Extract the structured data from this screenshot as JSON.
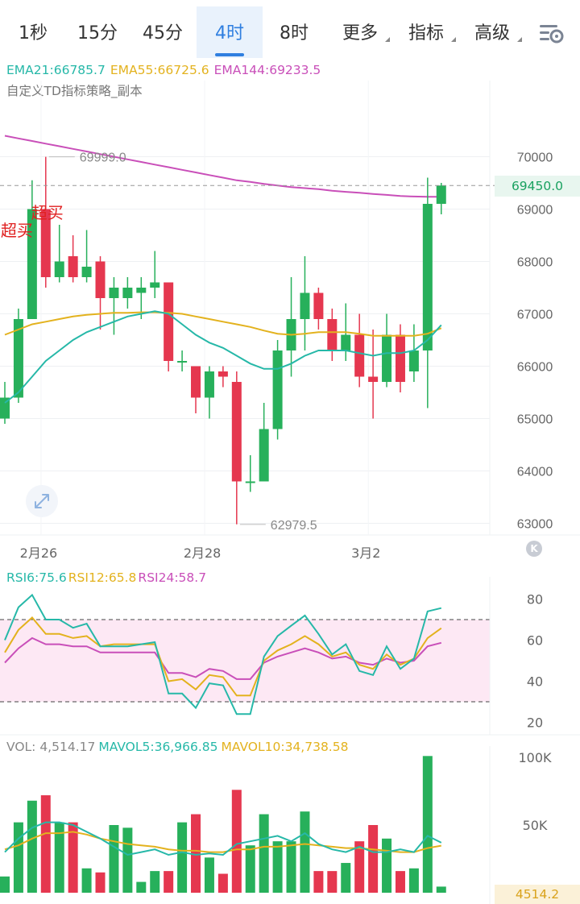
{
  "tabs": [
    {
      "label": "1秒",
      "dropdown": false,
      "active": false
    },
    {
      "label": "15分",
      "dropdown": false,
      "active": false
    },
    {
      "label": "45分",
      "dropdown": false,
      "active": false
    },
    {
      "label": "4时",
      "dropdown": false,
      "active": true
    },
    {
      "label": "8时",
      "dropdown": false,
      "active": false
    },
    {
      "label": "更多",
      "dropdown": true,
      "active": false
    },
    {
      "label": "指标",
      "dropdown": true,
      "active": false
    },
    {
      "label": "高级",
      "dropdown": true,
      "active": false
    }
  ],
  "icons": {
    "settings": "chart-settings-icon",
    "zoom": "expand-arrows-icon",
    "k": "k-line-icon"
  },
  "k_label": "K",
  "colors": {
    "up": "#27b05b",
    "down": "#e5374f",
    "ema21": "#26b8a8",
    "ema55": "#e3b21e",
    "ema144": "#c94fb9",
    "rsi6": "#26b8a8",
    "rsi12": "#e3b21e",
    "rsi24": "#c94fb9",
    "accent": "#2f7fe0"
  },
  "main_legend": {
    "ema21": "EMA21:66785.7",
    "ema55": "EMA55:66725.6",
    "ema144": "EMA144:69233.5",
    "strategy": "自定义TD指标策略_副本"
  },
  "rsi_legend": {
    "rsi6": "RSI6:75.6",
    "rsi12": "RSI12:65.8",
    "rsi24": "RSI24:58.7"
  },
  "vol_legend": {
    "vol": "VOL: 4,514.17",
    "mavol5": "MAVOL5:36,966.85",
    "mavol10": "MAVOL10:34,738.58"
  },
  "last_price": "69450.0",
  "last_volume": "4514.2",
  "chart_data": {
    "type": "candlestick",
    "price_ticks": [
      70000,
      69000,
      68000,
      67000,
      66000,
      65000,
      64000,
      63000
    ],
    "date_labels": [
      {
        "index": 1,
        "label": "2月26"
      },
      {
        "index": 13,
        "label": "2月28"
      },
      {
        "index": 25,
        "label": "3月2"
      }
    ],
    "annotations": [
      {
        "type": "high",
        "index": 3,
        "label": "69999.0",
        "value": 69999.0
      },
      {
        "type": "low",
        "index": 17,
        "label": "62979.5",
        "value": 62979.5
      },
      {
        "type": "signal",
        "index": 1,
        "label": "超买"
      },
      {
        "type": "signal",
        "index": 3,
        "label": "超买"
      }
    ],
    "candles": [
      {
        "o": 65000,
        "c": 65400,
        "h": 65700,
        "l": 64900
      },
      {
        "o": 65400,
        "c": 66900,
        "h": 67100,
        "l": 65300
      },
      {
        "o": 66900,
        "c": 69000,
        "h": 69550,
        "l": 66900
      },
      {
        "o": 69000,
        "c": 67700,
        "h": 69999,
        "l": 67500
      },
      {
        "o": 67700,
        "c": 68000,
        "h": 68700,
        "l": 67600
      },
      {
        "o": 68100,
        "c": 67700,
        "h": 68500,
        "l": 67600
      },
      {
        "o": 67700,
        "c": 67900,
        "h": 68600,
        "l": 67600
      },
      {
        "o": 68000,
        "c": 67300,
        "h": 68100,
        "l": 66700
      },
      {
        "o": 67300,
        "c": 67500,
        "h": 67700,
        "l": 66600
      },
      {
        "o": 67300,
        "c": 67500,
        "h": 67700,
        "l": 67100
      },
      {
        "o": 67400,
        "c": 67500,
        "h": 67700,
        "l": 66900
      },
      {
        "o": 67500,
        "c": 67600,
        "h": 68200,
        "l": 67300
      },
      {
        "o": 67600,
        "c": 66100,
        "h": 67600,
        "l": 65900
      },
      {
        "o": 66100,
        "c": 66100,
        "h": 66300,
        "l": 65900
      },
      {
        "o": 66000,
        "c": 65400,
        "h": 66000,
        "l": 65100
      },
      {
        "o": 65400,
        "c": 65900,
        "h": 66000,
        "l": 65000
      },
      {
        "o": 65900,
        "c": 65800,
        "h": 66000,
        "l": 65600
      },
      {
        "o": 65700,
        "c": 63800,
        "h": 65900,
        "l": 62980
      },
      {
        "o": 63800,
        "c": 63800,
        "h": 64300,
        "l": 63600
      },
      {
        "o": 63800,
        "c": 64800,
        "h": 65300,
        "l": 63800
      },
      {
        "o": 64800,
        "c": 66300,
        "h": 66500,
        "l": 64600
      },
      {
        "o": 66300,
        "c": 66900,
        "h": 67700,
        "l": 65800
      },
      {
        "o": 66900,
        "c": 67400,
        "h": 68100,
        "l": 66300
      },
      {
        "o": 67400,
        "c": 66900,
        "h": 67500,
        "l": 66700
      },
      {
        "o": 66900,
        "c": 66300,
        "h": 67100,
        "l": 66100
      },
      {
        "o": 66300,
        "c": 66600,
        "h": 67200,
        "l": 66100
      },
      {
        "o": 66600,
        "c": 65800,
        "h": 67000,
        "l": 65600
      },
      {
        "o": 65800,
        "c": 65700,
        "h": 66700,
        "l": 65000
      },
      {
        "o": 65700,
        "c": 66600,
        "h": 67000,
        "l": 65600
      },
      {
        "o": 66600,
        "c": 65700,
        "h": 66800,
        "l": 65500
      },
      {
        "o": 65900,
        "c": 66300,
        "h": 66800,
        "l": 65700
      },
      {
        "o": 66300,
        "c": 69100,
        "h": 69600,
        "l": 65200
      },
      {
        "o": 69100,
        "c": 69450,
        "h": 69500,
        "l": 68900
      }
    ],
    "ema21": [
      65300,
      65500,
      65800,
      66100,
      66300,
      66500,
      66650,
      66750,
      66850,
      66950,
      67000,
      67050,
      67000,
      66800,
      66600,
      66450,
      66350,
      66200,
      66050,
      65950,
      65950,
      66050,
      66200,
      66300,
      66300,
      66300,
      66250,
      66200,
      66250,
      66250,
      66300,
      66500,
      66785.7
    ],
    "ema55": [
      66600,
      66700,
      66800,
      66850,
      66900,
      66950,
      66980,
      67000,
      67020,
      67020,
      67030,
      67030,
      67020,
      67000,
      66950,
      66900,
      66850,
      66800,
      66750,
      66680,
      66620,
      66600,
      66620,
      66650,
      66650,
      66650,
      66620,
      66580,
      66580,
      66580,
      66580,
      66620,
      66725.6
    ],
    "ema144": [
      70400,
      70350,
      70300,
      70250,
      70200,
      70150,
      70100,
      70050,
      70000,
      69950,
      69900,
      69850,
      69800,
      69750,
      69700,
      69650,
      69600,
      69550,
      69520,
      69480,
      69450,
      69420,
      69400,
      69380,
      69350,
      69330,
      69310,
      69290,
      69270,
      69250,
      69240,
      69235,
      69233.5
    ],
    "rsi_ticks": [
      80,
      60,
      40,
      20
    ],
    "rsi_bands": [
      70,
      30
    ],
    "rsi6": [
      60,
      76,
      82,
      70,
      70,
      66,
      68,
      57,
      57,
      57,
      58,
      59,
      34,
      34,
      27,
      39,
      38,
      24,
      24,
      52,
      62,
      67,
      72,
      63,
      53,
      58,
      45,
      43,
      57,
      46,
      51,
      74,
      75.6
    ],
    "rsi12": [
      54,
      65,
      71,
      63,
      63,
      61,
      62,
      57,
      58,
      58,
      58,
      58,
      40,
      41,
      36,
      43,
      42,
      33,
      33,
      50,
      55,
      58,
      62,
      58,
      52,
      54,
      48,
      46,
      53,
      48,
      51,
      61,
      65.8
    ],
    "rsi24": [
      49,
      56,
      61,
      58,
      58,
      57,
      57,
      54,
      54,
      54,
      54,
      54,
      44,
      44,
      42,
      46,
      45,
      41,
      41,
      49,
      52,
      54,
      56,
      54,
      51,
      52,
      49,
      48,
      51,
      49,
      50,
      57,
      58.7
    ],
    "vol_ticks": [
      100000,
      50000
    ],
    "volume": [
      12000,
      52000,
      68000,
      72000,
      52000,
      52000,
      18000,
      15000,
      50000,
      48000,
      8000,
      16000,
      16000,
      52000,
      58000,
      26000,
      14000,
      76000,
      35000,
      58000,
      38000,
      38000,
      60000,
      16000,
      16000,
      22000,
      38000,
      50000,
      40000,
      16000,
      18000,
      101000,
      4514.2
    ],
    "mavol5": [
      30000,
      40000,
      48000,
      52000,
      52000,
      50000,
      45000,
      40000,
      34000,
      28000,
      30000,
      32000,
      28000,
      30000,
      28000,
      29000,
      28000,
      36000,
      38000,
      40000,
      42000,
      38000,
      44000,
      36000,
      32000,
      30000,
      34000,
      30000,
      30000,
      32000,
      30000,
      42000,
      36966.85
    ],
    "mavol10": [
      32000,
      35000,
      40000,
      44000,
      44000,
      45000,
      43000,
      40000,
      38000,
      36000,
      35000,
      34000,
      32000,
      31000,
      31000,
      30000,
      30000,
      32000,
      32000,
      34000,
      34000,
      35000,
      36000,
      35000,
      34000,
      33000,
      33000,
      32000,
      31000,
      30000,
      30000,
      33000,
      34738.58
    ]
  }
}
